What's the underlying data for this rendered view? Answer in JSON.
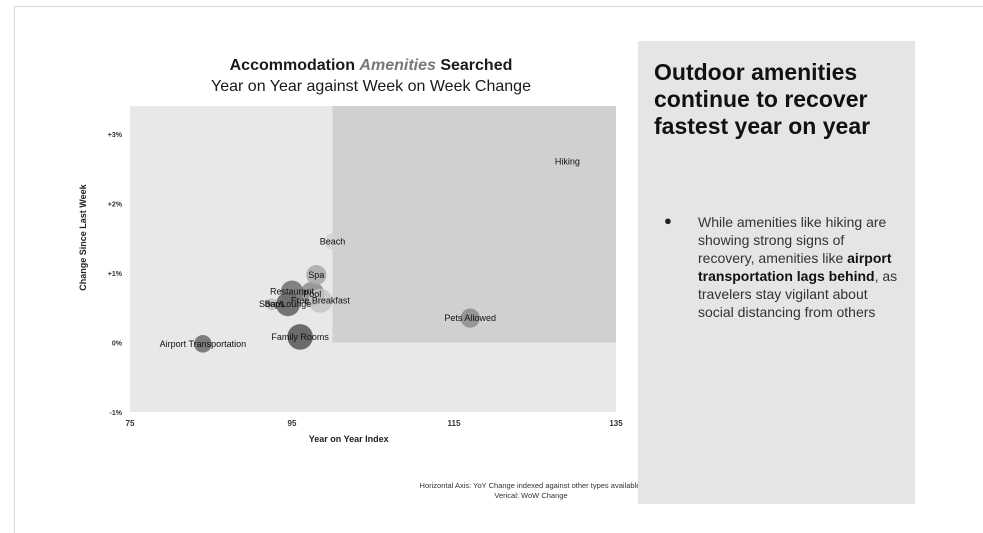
{
  "title": {
    "part1": "Accommodation ",
    "emphasis": "Amenities",
    "part2": " Searched",
    "subtitle": "Year on Year against Week on Week Change"
  },
  "chart_data": {
    "type": "scatter",
    "style": "bubble",
    "xlabel": "Year on Year Index",
    "ylabel": "Change Since Last Week",
    "xlim": [
      75,
      135
    ],
    "ylim": [
      -1,
      3.4
    ],
    "xticks": [
      {
        "value": 75,
        "label": "75"
      },
      {
        "value": 95,
        "label": "95"
      },
      {
        "value": 115,
        "label": "115"
      },
      {
        "value": 135,
        "label": "135"
      }
    ],
    "yticks": [
      {
        "value": -1,
        "label": "-1%"
      },
      {
        "value": 0,
        "label": "0%"
      },
      {
        "value": 1,
        "label": "+1%"
      },
      {
        "value": 2,
        "label": "+2%"
      },
      {
        "value": 3,
        "label": "+3%"
      }
    ],
    "quadrant_split": {
      "x": 100,
      "y": 0
    },
    "grid": false,
    "legend": "none",
    "points": [
      {
        "label": "Hiking",
        "x": 129,
        "y": 2.6,
        "size": 0,
        "color": "#9a9a9a"
      },
      {
        "label": "Beach",
        "x": 100,
        "y": 1.45,
        "size": 2,
        "color": "#d2d2d2"
      },
      {
        "label": "Spa",
        "x": 98,
        "y": 0.97,
        "size": 2.5,
        "color": "#a8a8a8"
      },
      {
        "label": "Restaurant",
        "x": 95,
        "y": 0.73,
        "size": 2.8,
        "color": "#6e6e6e"
      },
      {
        "label": "Pool",
        "x": 97.5,
        "y": 0.7,
        "size": 3,
        "color": "#8a8a8a"
      },
      {
        "label": "Free Breakfast",
        "x": 98.5,
        "y": 0.6,
        "size": 3,
        "color": "#c4c4c4"
      },
      {
        "label": "Bar/Lounge",
        "x": 94.5,
        "y": 0.55,
        "size": 3,
        "color": "#5e5e5e"
      },
      {
        "label": "Shops",
        "x": 92.5,
        "y": 0.55,
        "size": 1.5,
        "color": "#bcbcbc"
      },
      {
        "label": "Pets Allowed",
        "x": 117,
        "y": 0.35,
        "size": 2.4,
        "color": "#8c8c8c"
      },
      {
        "label": "Family Rooms",
        "x": 96,
        "y": 0.08,
        "size": 3.2,
        "color": "#555555"
      },
      {
        "label": "Airport Transportation",
        "x": 84,
        "y": -0.02,
        "size": 2.2,
        "color": "#6a6a6a"
      }
    ]
  },
  "footnote": "Horizontal Axis: YoY Change indexed against other types available; Verical: WoW Change",
  "panel": {
    "heading": "Outdoor amenities continue to recover fastest year on year",
    "bullet": "●",
    "body_1": "While amenities like hiking are showing strong signs of recovery, amenities like ",
    "body_bold": "airport transportation lags behind",
    "body_2": ", as travelers stay vigilant about social distancing from others"
  },
  "colors": {
    "plot_background": "#e8e8e8",
    "upper_right_quadrant": "#d0d0d0",
    "panel_background": "#e5e5e5"
  }
}
